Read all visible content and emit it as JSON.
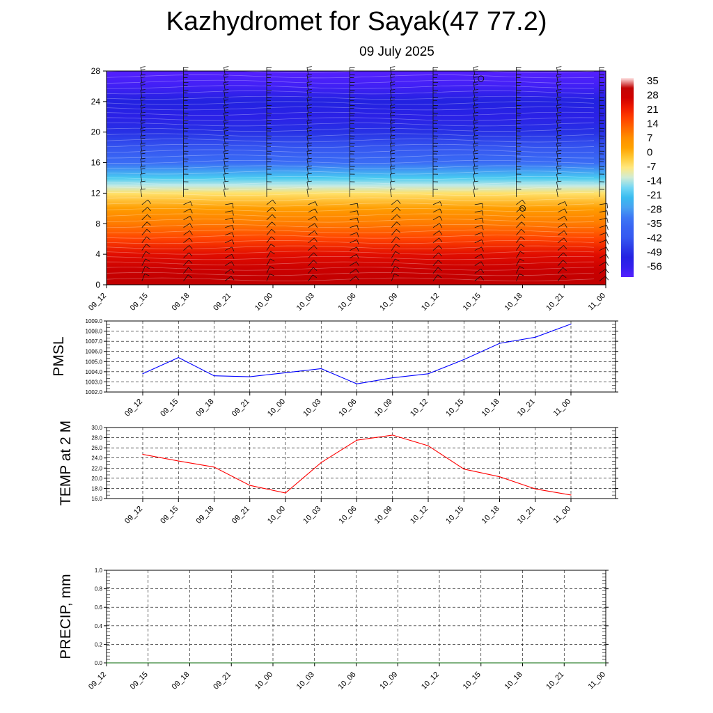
{
  "title": "Kazhydromet for Sayak(47 77.2)",
  "subtitle": "09 July 2025",
  "chart_data": [
    {
      "type": "heatmap",
      "x_tick_labels": [
        "09_12",
        "09_15",
        "09_18",
        "09_21",
        "10_00",
        "10_03",
        "10_06",
        "10_09",
        "10_12",
        "10_15",
        "10_18",
        "10_21",
        "11_00"
      ],
      "y_tick_labels": [
        "0",
        "4",
        "8",
        "12",
        "16",
        "20",
        "24",
        "28"
      ],
      "ylim": [
        0,
        28
      ],
      "colorbar_labels": [
        "35",
        "28",
        "21",
        "14",
        "7",
        "0",
        "-7",
        "-14",
        "-21",
        "-28",
        "-35",
        "-42",
        "-49",
        "-56"
      ],
      "colors": {
        "warm_low": "#d40000",
        "warm_mid": "#ff5a00",
        "orange": "#ffa500",
        "yellow": "#fff2a0",
        "cyan": "#33c4f0",
        "blue": "#3a6cf5",
        "deep_blue": "#2222e0",
        "violet": "#5520ff"
      },
      "temperature_profile": [
        {
          "z": 0,
          "t": 30
        },
        {
          "z": 2,
          "t": 27
        },
        {
          "z": 4,
          "t": 22
        },
        {
          "z": 6,
          "t": 15
        },
        {
          "z": 8,
          "t": 8
        },
        {
          "z": 10,
          "t": 2
        },
        {
          "z": 12,
          "t": -8
        },
        {
          "z": 13,
          "t": -15
        },
        {
          "z": 14,
          "t": -21
        },
        {
          "z": 16,
          "t": -35
        },
        {
          "z": 18,
          "t": -45
        },
        {
          "z": 20,
          "t": -50
        },
        {
          "z": 22,
          "t": -55
        },
        {
          "z": 24,
          "t": -52
        },
        {
          "z": 26,
          "t": -60
        },
        {
          "z": 28,
          "t": -63
        }
      ],
      "wind_barbs": "black barbs at every level and time",
      "calm_markers": [
        {
          "x": "10_15",
          "z": 27
        },
        {
          "x": "10_18",
          "z": 10
        }
      ]
    },
    {
      "type": "line",
      "ylabel": "PMSL",
      "x_tick_labels": [
        "09_12",
        "09_15",
        "09_18",
        "09_21",
        "10_00",
        "10_03",
        "10_06",
        "10_09",
        "10_12",
        "10_15",
        "10_18",
        "10_21",
        "11_00"
      ],
      "y_tick_labels": [
        "1002.0",
        "1003.0",
        "1004.0",
        "1005.0",
        "1006.0",
        "1007.0",
        "1008.0",
        "1009.0"
      ],
      "ylim": [
        1002,
        1009
      ],
      "series": [
        {
          "color": "#0000ff",
          "values": [
            1003.8,
            1005.4,
            1003.6,
            1003.5,
            1003.9,
            1004.3,
            1002.8,
            1003.4,
            1003.8,
            1005.2,
            1006.8,
            1007.4,
            1008.7
          ]
        }
      ],
      "grid": true
    },
    {
      "type": "line",
      "ylabel": "TEMP at 2 M",
      "x_tick_labels": [
        "09_12",
        "09_15",
        "09_18",
        "09_21",
        "10_00",
        "10_03",
        "10_06",
        "10_09",
        "10_12",
        "10_15",
        "10_18",
        "10_21",
        "11_00"
      ],
      "y_tick_labels": [
        "16.0",
        "18.0",
        "20.0",
        "22.0",
        "24.0",
        "26.0",
        "28.0",
        "30.0"
      ],
      "ylim": [
        16,
        30
      ],
      "series": [
        {
          "color": "#ff0000",
          "values": [
            24.7,
            23.4,
            22.2,
            18.6,
            17.1,
            23.1,
            27.5,
            28.5,
            26.4,
            21.8,
            20.3,
            17.9,
            16.7
          ]
        }
      ],
      "grid": true
    },
    {
      "type": "line",
      "ylabel": "PRECIP, mm",
      "x_tick_labels": [
        "09_12",
        "09_15",
        "09_18",
        "09_21",
        "10_00",
        "10_03",
        "10_06",
        "10_09",
        "10_12",
        "10_15",
        "10_18",
        "10_21",
        "11_00"
      ],
      "y_tick_labels": [
        "0.0",
        "0.2",
        "0.4",
        "0.6",
        "0.8",
        "1.0"
      ],
      "ylim": [
        0,
        1
      ],
      "series": [
        {
          "color": "#006400",
          "values": [
            0,
            0,
            0,
            0,
            0,
            0,
            0,
            0,
            0,
            0,
            0,
            0,
            0
          ]
        }
      ],
      "grid": true
    }
  ]
}
